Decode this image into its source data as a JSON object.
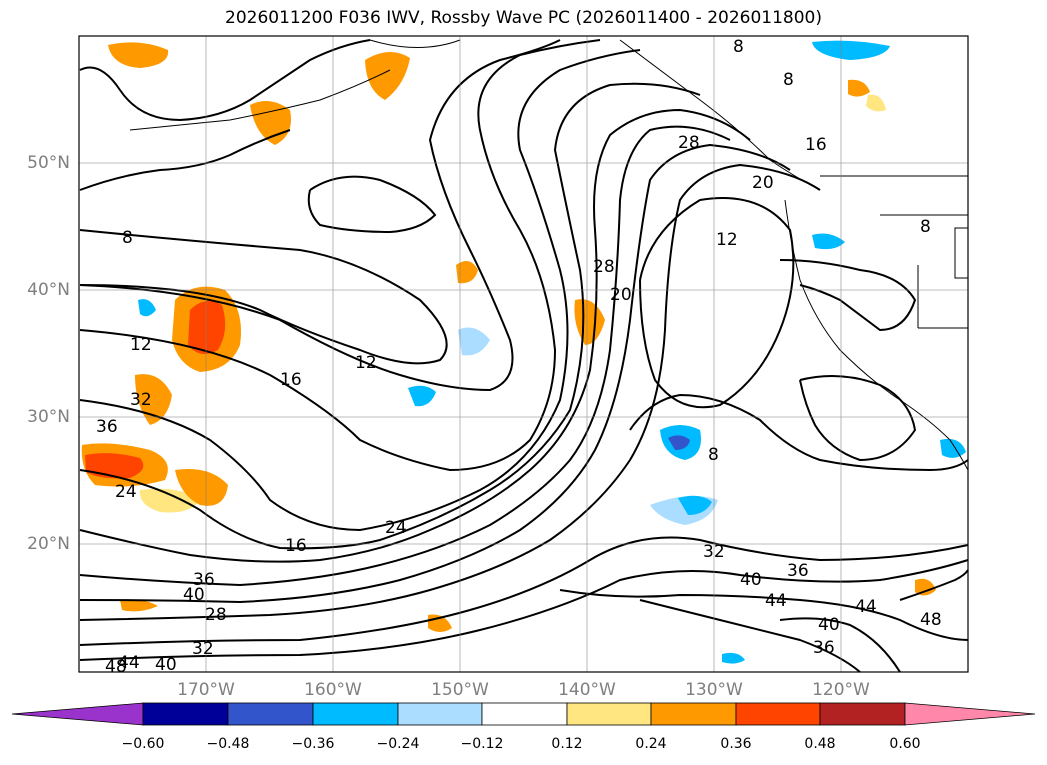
{
  "title": "2026011200 F036 IWV, Rossby Wave PC (2026011400 - 2026011800)",
  "map": {
    "lat_labels": [
      "50°N",
      "40°N",
      "30°N",
      "20°N"
    ],
    "lon_labels": [
      "170°W",
      "160°W",
      "150°W",
      "140°W",
      "130°W",
      "120°W"
    ],
    "contour_labels": [
      {
        "text": "8"
      },
      {
        "text": "8"
      },
      {
        "text": "8"
      },
      {
        "text": "8"
      },
      {
        "text": "8"
      },
      {
        "text": "12"
      },
      {
        "text": "12"
      },
      {
        "text": "12"
      },
      {
        "text": "16"
      },
      {
        "text": "16"
      },
      {
        "text": "16"
      },
      {
        "text": "20"
      },
      {
        "text": "20"
      },
      {
        "text": "24"
      },
      {
        "text": "24"
      },
      {
        "text": "28"
      },
      {
        "text": "28"
      },
      {
        "text": "28"
      },
      {
        "text": "32"
      },
      {
        "text": "32"
      },
      {
        "text": "32"
      },
      {
        "text": "36"
      },
      {
        "text": "36"
      },
      {
        "text": "36"
      },
      {
        "text": "36"
      },
      {
        "text": "40"
      },
      {
        "text": "40"
      },
      {
        "text": "40"
      },
      {
        "text": "40"
      },
      {
        "text": "44"
      },
      {
        "text": "44"
      },
      {
        "text": "44"
      },
      {
        "text": "48"
      },
      {
        "text": "48"
      }
    ]
  },
  "colorbar": {
    "ticks": [
      "−0.60",
      "−0.48",
      "−0.36",
      "−0.24",
      "−0.12",
      "0.12",
      "0.24",
      "0.36",
      "0.48",
      "0.60"
    ],
    "colors": [
      "#9933cc",
      "#000099",
      "#3355cc",
      "#00bbff",
      "#aaddff",
      "#ffffff",
      "#ffe680",
      "#ff9900",
      "#ff4400",
      "#b22222",
      "#ff88aa"
    ]
  }
}
